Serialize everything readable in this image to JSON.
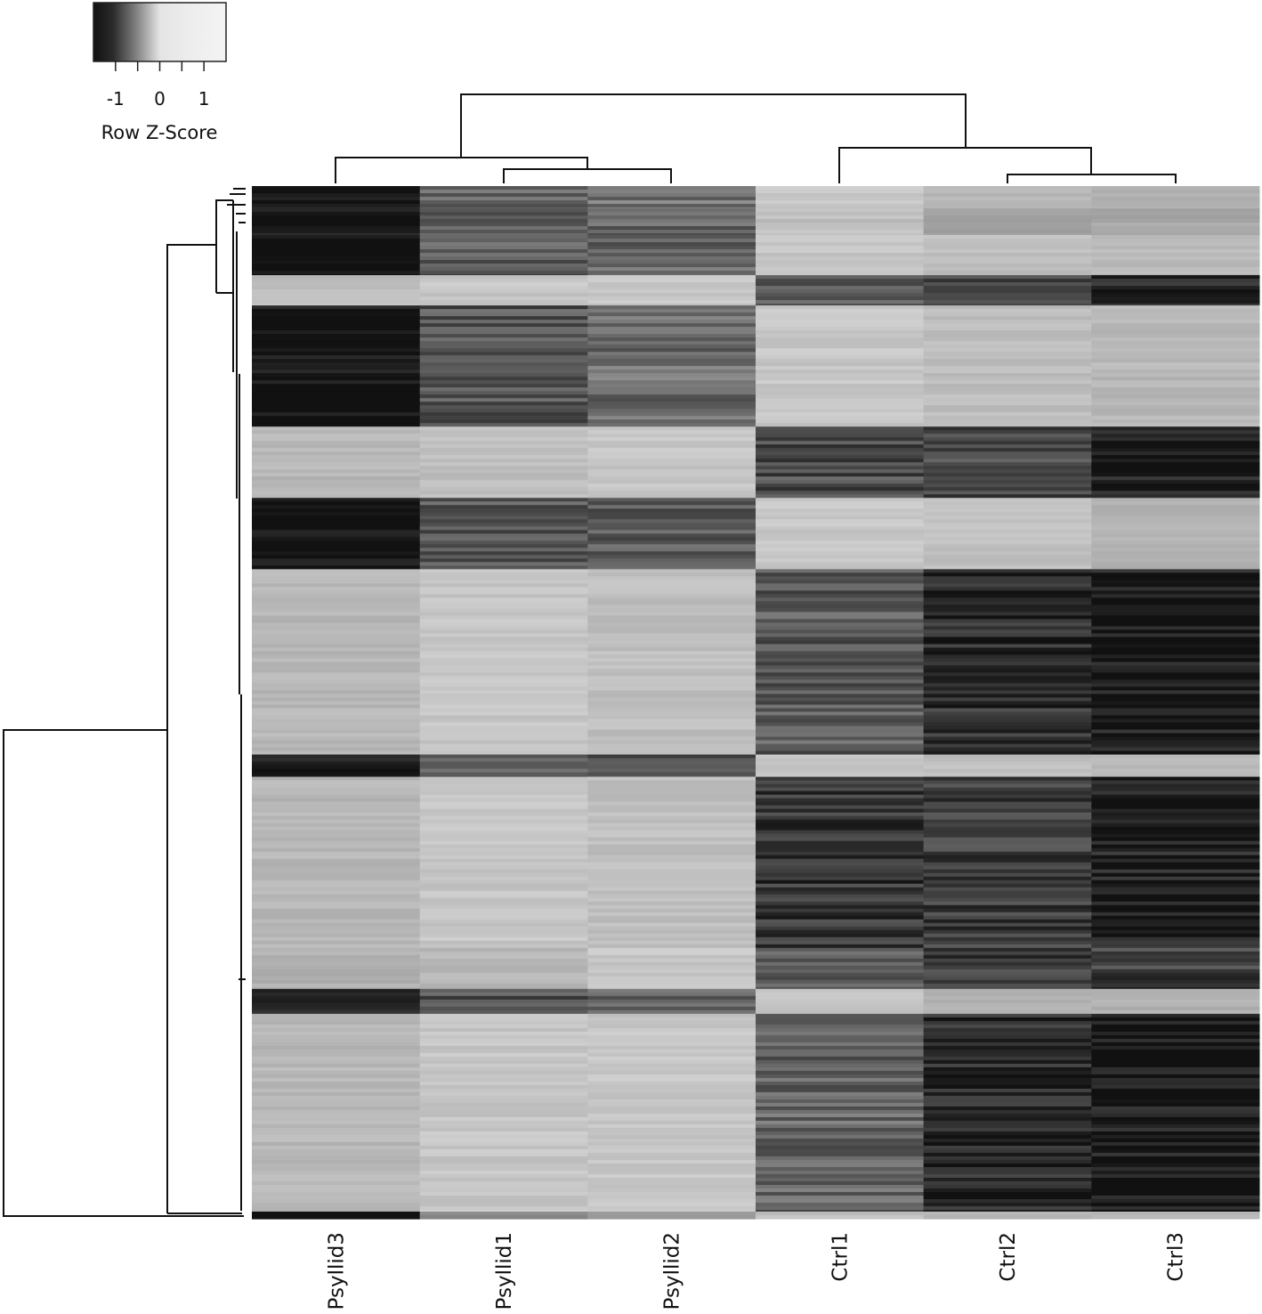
{
  "chart_data": {
    "type": "heatmap",
    "title": "",
    "columns": [
      "Psyllid3",
      "Psyllid1",
      "Psyllid2",
      "Ctrl1",
      "Ctrl2",
      "Ctrl3"
    ],
    "color_key": {
      "label": "Row Z-Score",
      "ticks": [
        "-1",
        "0",
        "1"
      ],
      "tick_values": [
        -1,
        0,
        1
      ],
      "range": [
        -1.5,
        1.5
      ],
      "low_color": "#111111",
      "high_color": "#f4f4f4"
    },
    "column_dendrogram": "((Psyllid3,(Psyllid1,Psyllid2)),(Ctrl1,(Ctrl2,Ctrl3)))",
    "row_blocks": [
      {
        "name": "block-1",
        "rows": 25,
        "z": [
          -1.6,
          -0.4,
          -0.2,
          0.9,
          0.7,
          0.6
        ]
      },
      {
        "name": "block-2",
        "rows": 30,
        "z": [
          -1.5,
          -0.4,
          -0.3,
          0.8,
          0.4,
          0.5
        ]
      },
      {
        "name": "block-3",
        "rows": 45,
        "z": [
          -1.6,
          -0.5,
          -0.4,
          0.9,
          0.8,
          0.7
        ]
      },
      {
        "name": "block-4",
        "rows": 34,
        "z": [
          0.8,
          0.9,
          0.9,
          -0.6,
          -0.7,
          -1.3
        ]
      },
      {
        "name": "block-5",
        "rows": 136,
        "z": [
          -1.6,
          -0.6,
          -0.3,
          0.9,
          0.8,
          0.7
        ]
      },
      {
        "name": "block-6",
        "rows": 80,
        "z": [
          0.7,
          0.8,
          0.9,
          -0.7,
          -0.8,
          -1.3
        ]
      },
      {
        "name": "block-7",
        "rows": 80,
        "z": [
          -1.6,
          -0.5,
          -0.6,
          0.9,
          0.8,
          0.6
        ]
      },
      {
        "name": "block-8",
        "rows": 208,
        "z": [
          0.7,
          0.9,
          0.8,
          -0.5,
          -1.1,
          -1.4
        ]
      },
      {
        "name": "block-9",
        "rows": 25,
        "z": [
          -1.5,
          -0.6,
          -0.5,
          0.9,
          0.8,
          0.7
        ]
      },
      {
        "name": "block-10",
        "rows": 192,
        "z": [
          0.7,
          0.9,
          0.8,
          -1.0,
          -0.9,
          -1.3
        ]
      },
      {
        "name": "block-11",
        "rows": 46,
        "z": [
          0.6,
          0.7,
          0.9,
          -0.4,
          -1.0,
          -0.9
        ]
      },
      {
        "name": "block-12",
        "rows": 28,
        "z": [
          -1.5,
          -0.6,
          -0.4,
          0.9,
          0.6,
          0.6
        ]
      },
      {
        "name": "block-13",
        "rows": 222,
        "z": [
          0.7,
          0.9,
          0.9,
          -0.4,
          -1.2,
          -1.4
        ]
      },
      {
        "name": "block-14",
        "rows": 8,
        "z": [
          -1.7,
          0.1,
          0.3,
          0.8,
          0.7,
          0.7
        ]
      }
    ]
  }
}
